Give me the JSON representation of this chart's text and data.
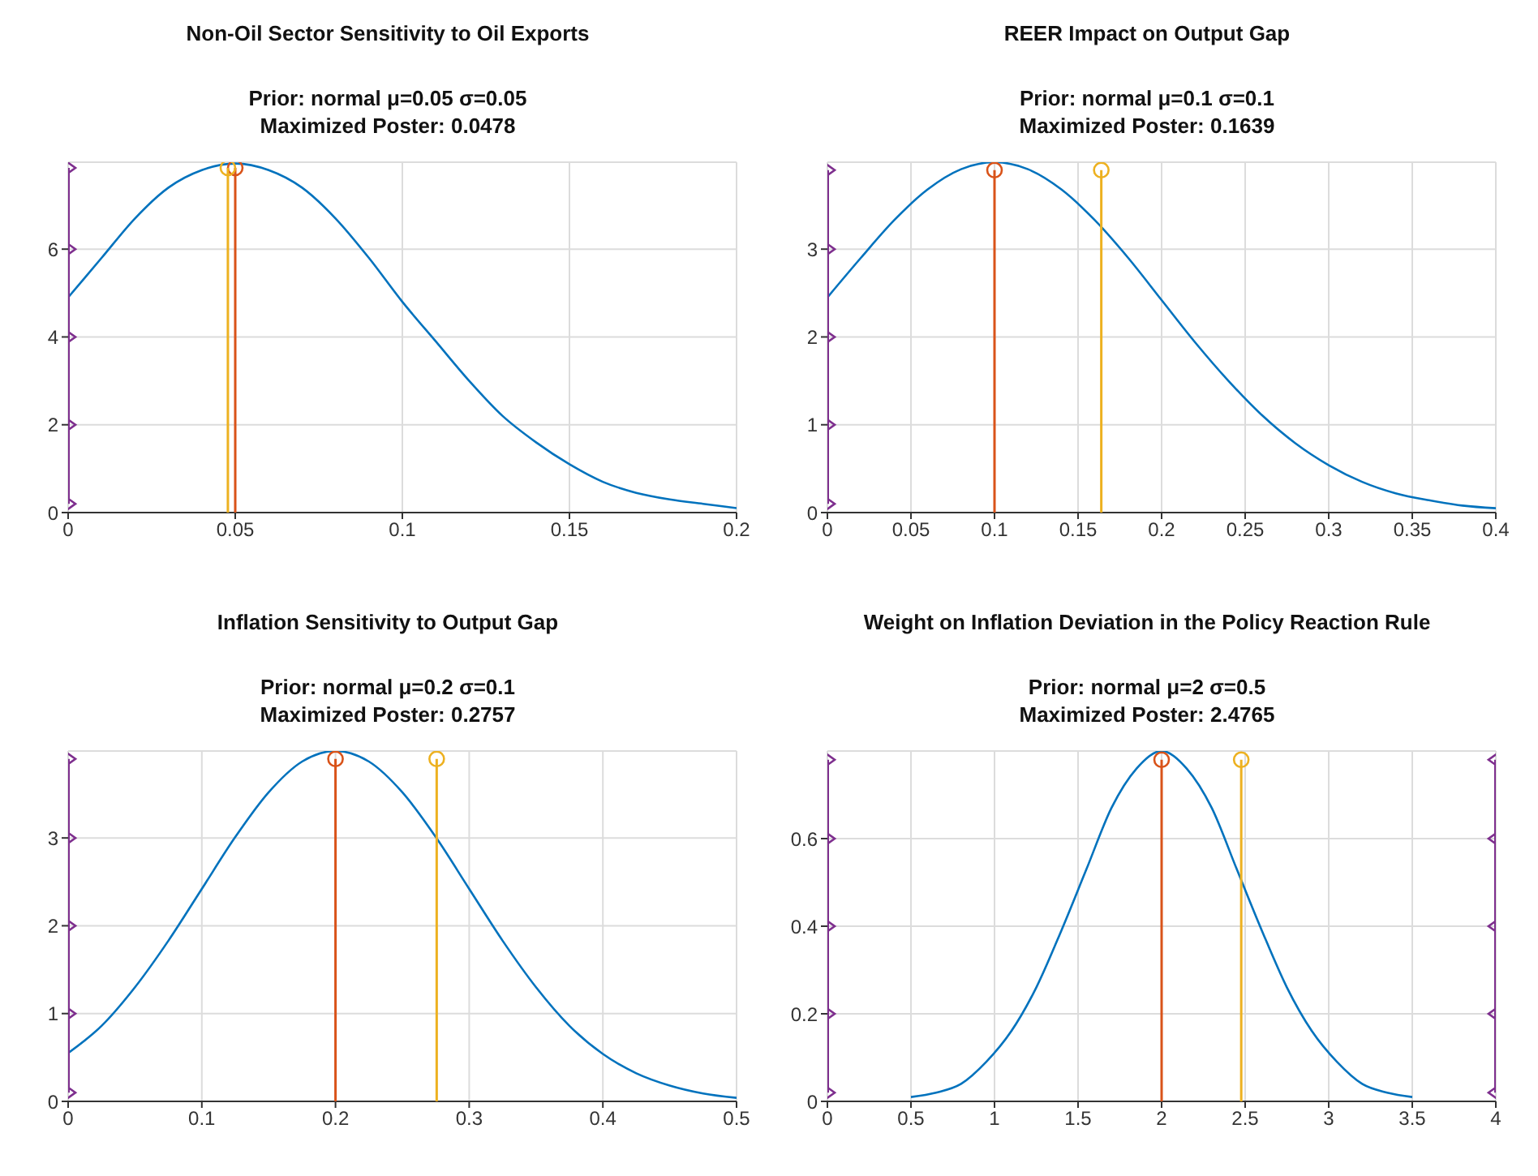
{
  "chart_data": [
    {
      "type": "line",
      "title": "Non-Oil Sector Sensitivity to Oil Exports",
      "subtitle": "Prior: normal μ=0.05 σ=0.05\nMaximized Poster: 0.0478",
      "xlim": [
        0,
        0.2
      ],
      "xticks": [
        0,
        0.05,
        0.1,
        0.15,
        0.2
      ],
      "ylim": [
        0,
        7.98
      ],
      "yticks": [
        0,
        2,
        4,
        6
      ],
      "grid": true,
      "x": [
        0,
        0.01,
        0.02,
        0.03,
        0.04,
        0.05,
        0.06,
        0.07,
        0.08,
        0.09,
        0.1,
        0.11,
        0.12,
        0.13,
        0.14,
        0.15,
        0.16,
        0.17,
        0.18,
        0.19,
        0.2
      ],
      "series": [
        {
          "color": "#0072bd",
          "values": [
            4.9,
            5.8,
            6.7,
            7.4,
            7.8,
            7.95,
            7.8,
            7.4,
            6.7,
            5.8,
            4.8,
            3.9,
            3.0,
            2.2,
            1.6,
            1.1,
            0.7,
            0.45,
            0.3,
            0.2,
            0.1
          ]
        },
        {
          "type": "lollipop",
          "marker": "circle",
          "color": "#d95319",
          "x": [
            0.05
          ],
          "values": [
            7.85
          ]
        },
        {
          "type": "lollipop",
          "marker": "circle",
          "color": "#edb120",
          "x": [
            0.0478
          ],
          "values": [
            7.85
          ]
        },
        {
          "type": "line",
          "marker": "triangle",
          "color": "#7e2f8e",
          "x": [
            0,
            0,
            0,
            0,
            0
          ],
          "values": [
            0.2,
            2,
            4,
            6,
            7.85
          ]
        }
      ]
    },
    {
      "type": "line",
      "title": "REER Impact on Output Gap",
      "subtitle": "Prior: normal μ=0.1 σ=0.1\nMaximized Poster: 0.1639",
      "xlim": [
        0,
        0.4
      ],
      "xticks": [
        0,
        0.05,
        0.1,
        0.15,
        0.2,
        0.25,
        0.3,
        0.35,
        0.4
      ],
      "ylim": [
        0,
        3.99
      ],
      "yticks": [
        0,
        1,
        2,
        3
      ],
      "grid": true,
      "x": [
        0,
        0.02,
        0.04,
        0.06,
        0.08,
        0.1,
        0.12,
        0.14,
        0.16,
        0.18,
        0.2,
        0.22,
        0.24,
        0.26,
        0.28,
        0.3,
        0.32,
        0.34,
        0.36,
        0.38,
        0.4
      ],
      "series": [
        {
          "color": "#0072bd",
          "values": [
            2.45,
            2.9,
            3.33,
            3.68,
            3.91,
            3.99,
            3.91,
            3.68,
            3.33,
            2.9,
            2.42,
            1.94,
            1.5,
            1.11,
            0.79,
            0.54,
            0.35,
            0.22,
            0.14,
            0.08,
            0.05
          ]
        },
        {
          "type": "lollipop",
          "marker": "circle",
          "color": "#d95319",
          "x": [
            0.1
          ],
          "values": [
            3.9
          ]
        },
        {
          "type": "lollipop",
          "marker": "circle",
          "color": "#edb120",
          "x": [
            0.1639
          ],
          "values": [
            3.9
          ]
        },
        {
          "type": "line",
          "marker": "triangle",
          "color": "#7e2f8e",
          "x": [
            0,
            0,
            0,
            0,
            0
          ],
          "values": [
            0.1,
            1,
            2,
            3,
            3.9
          ]
        }
      ]
    },
    {
      "type": "line",
      "title": "Inflation Sensitivity to Output Gap",
      "subtitle": "Prior: normal μ=0.2 σ=0.1\nMaximized Poster: 0.2757",
      "xlim": [
        0,
        0.5
      ],
      "xticks": [
        0,
        0.1,
        0.2,
        0.3,
        0.4,
        0.5
      ],
      "ylim": [
        0,
        3.99
      ],
      "yticks": [
        0,
        1,
        2,
        3
      ],
      "grid": true,
      "x": [
        0,
        0.025,
        0.05,
        0.075,
        0.1,
        0.125,
        0.15,
        0.175,
        0.2,
        0.225,
        0.25,
        0.275,
        0.3,
        0.325,
        0.35,
        0.375,
        0.4,
        0.425,
        0.45,
        0.475,
        0.5
      ],
      "series": [
        {
          "color": "#0072bd",
          "values": [
            0.55,
            0.86,
            1.3,
            1.83,
            2.42,
            3.01,
            3.52,
            3.87,
            3.99,
            3.87,
            3.52,
            3.01,
            2.42,
            1.83,
            1.3,
            0.86,
            0.54,
            0.32,
            0.18,
            0.09,
            0.04
          ]
        },
        {
          "type": "lollipop",
          "marker": "circle",
          "color": "#d95319",
          "x": [
            0.2
          ],
          "values": [
            3.9
          ]
        },
        {
          "type": "lollipop",
          "marker": "circle",
          "color": "#edb120",
          "x": [
            0.2757
          ],
          "values": [
            3.9
          ]
        },
        {
          "type": "line",
          "marker": "triangle",
          "color": "#7e2f8e",
          "x": [
            0,
            0,
            0,
            0,
            0
          ],
          "values": [
            0.1,
            1,
            2,
            3,
            3.9
          ]
        }
      ]
    },
    {
      "type": "line",
      "title": "Weight on Inflation Deviation in the Policy Reaction Rule",
      "subtitle": "Prior: normal μ=2 σ=0.5\nMaximized Poster: 2.4765",
      "xlim": [
        0,
        4
      ],
      "xticks": [
        0,
        0.5,
        1,
        1.5,
        2,
        2.5,
        3,
        3.5,
        4
      ],
      "ylim": [
        0,
        0.8
      ],
      "yticks": [
        0,
        0.2,
        0.4,
        0.6
      ],
      "grid": true,
      "x": [
        0.5,
        0.65,
        0.8,
        0.95,
        1.1,
        1.25,
        1.4,
        1.55,
        1.7,
        1.85,
        2,
        2.15,
        2.3,
        2.45,
        2.6,
        2.75,
        2.9,
        3.05,
        3.2,
        3.35,
        3.5
      ],
      "series": [
        {
          "color": "#0072bd",
          "values": [
            0.01,
            0.02,
            0.04,
            0.09,
            0.16,
            0.26,
            0.39,
            0.53,
            0.67,
            0.76,
            0.8,
            0.76,
            0.67,
            0.53,
            0.39,
            0.26,
            0.16,
            0.09,
            0.04,
            0.02,
            0.01
          ]
        },
        {
          "type": "lollipop",
          "marker": "circle",
          "color": "#d95319",
          "x": [
            2
          ],
          "values": [
            0.78
          ]
        },
        {
          "type": "lollipop",
          "marker": "circle",
          "color": "#edb120",
          "x": [
            2.4765
          ],
          "values": [
            0.78
          ]
        },
        {
          "type": "line",
          "marker": "triangle",
          "color": "#7e2f8e",
          "x": [
            0,
            0,
            0,
            0,
            0
          ],
          "values": [
            0.02,
            0.2,
            0.4,
            0.6,
            0.78
          ]
        },
        {
          "type": "line",
          "marker": "triangle",
          "color": "#7e2f8e",
          "x": [
            4,
            4,
            4,
            4,
            4
          ],
          "values": [
            0.02,
            0.2,
            0.4,
            0.6,
            0.78
          ]
        }
      ]
    }
  ]
}
